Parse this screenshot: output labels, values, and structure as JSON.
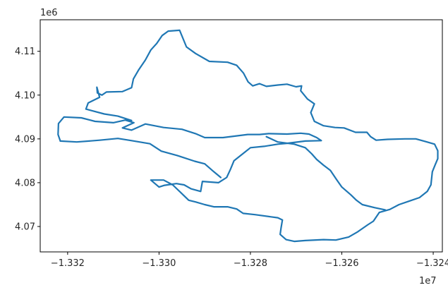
{
  "chart_data": {
    "type": "line",
    "title": "",
    "xlabel": "",
    "ylabel": "",
    "x_offset_label": "1e7",
    "y_offset_label": "1e6",
    "xlim": [
      -1.3326,
      -1.3238
    ],
    "ylim": [
      4.0642,
      4.1172
    ],
    "x_ticks": [
      -1.332,
      -1.33,
      -1.328,
      -1.326,
      -1.324
    ],
    "x_tick_labels": [
      "−1.332",
      "−1.330",
      "−1.328",
      "−1.326",
      "−1.324"
    ],
    "y_ticks": [
      4.07,
      4.08,
      4.09,
      4.1,
      4.11
    ],
    "y_tick_labels": [
      "4.07",
      "4.08",
      "4.09",
      "4.10",
      "4.11"
    ],
    "grid": false,
    "series_color": "#1f77b4",
    "series": [
      {
        "points": [
          [
            -1.33216,
            4.0895
          ],
          [
            -1.33221,
            4.091
          ],
          [
            -1.3322,
            4.0935
          ],
          [
            -1.33208,
            4.095
          ],
          [
            -1.3317,
            4.0948
          ],
          [
            -1.3314,
            4.094
          ],
          [
            -1.331,
            4.0937
          ],
          [
            -1.33074,
            4.0943
          ],
          [
            -1.33055,
            4.0937
          ],
          [
            -1.3308,
            4.0925
          ],
          [
            -1.3306,
            4.092
          ],
          [
            -1.3303,
            4.0934
          ],
          [
            -1.3299,
            4.0926
          ],
          [
            -1.3295,
            4.0922
          ],
          [
            -1.3292,
            4.0912
          ],
          [
            -1.329,
            4.0903
          ],
          [
            -1.3286,
            4.0903
          ],
          [
            -1.32806,
            4.091
          ],
          [
            -1.3278,
            4.091
          ],
          [
            -1.3276,
            4.0912
          ],
          [
            -1.3272,
            4.0911
          ],
          [
            -1.3269,
            4.0913
          ],
          [
            -1.32672,
            4.0911
          ],
          [
            -1.32655,
            4.0903
          ],
          [
            -1.32645,
            4.0896
          ],
          [
            -1.3268,
            4.0895
          ],
          [
            -1.3272,
            4.089
          ],
          [
            -1.3274,
            4.0888
          ],
          [
            -1.3277,
            4.0883
          ],
          [
            -1.328,
            4.088
          ],
          [
            -1.32812,
            4.087
          ],
          [
            -1.32836,
            4.085
          ],
          [
            -1.32844,
            4.083
          ],
          [
            -1.32852,
            4.0812
          ],
          [
            -1.3287,
            4.08
          ],
          [
            -1.32905,
            4.0803
          ],
          [
            -1.32909,
            4.078
          ],
          [
            -1.3293,
            4.0786
          ],
          [
            -1.32945,
            4.0795
          ],
          [
            -1.32962,
            4.0798
          ],
          [
            -1.32988,
            4.0794
          ],
          [
            -1.33,
            4.079
          ],
          [
            -1.33018,
            4.0806
          ],
          [
            -1.3299,
            4.0806
          ],
          [
            -1.3297,
            4.0795
          ],
          [
            -1.3295,
            4.0775
          ],
          [
            -1.32935,
            4.076
          ],
          [
            -1.3292,
            4.0756
          ],
          [
            -1.329,
            4.075
          ],
          [
            -1.3288,
            4.0745
          ],
          [
            -1.3285,
            4.0745
          ],
          [
            -1.3283,
            4.074
          ],
          [
            -1.32816,
            4.073
          ],
          [
            -1.3279,
            4.0727
          ],
          [
            -1.32755,
            4.0722
          ],
          [
            -1.3274,
            4.072
          ],
          [
            -1.3273,
            4.0715
          ],
          [
            -1.32733,
            4.0697
          ],
          [
            -1.32735,
            4.0682
          ],
          [
            -1.32722,
            4.067
          ],
          [
            -1.32704,
            4.0666
          ],
          [
            -1.3268,
            4.0668
          ],
          [
            -1.3264,
            4.067
          ],
          [
            -1.32613,
            4.0669
          ],
          [
            -1.32585,
            4.0676
          ],
          [
            -1.32565,
            4.0688
          ],
          [
            -1.32543,
            4.0704
          ],
          [
            -1.32531,
            4.0712
          ],
          [
            -1.32518,
            4.0732
          ],
          [
            -1.32495,
            4.0739
          ],
          [
            -1.32475,
            4.075
          ],
          [
            -1.3245,
            4.0759
          ],
          [
            -1.3243,
            4.0766
          ],
          [
            -1.32413,
            4.078
          ],
          [
            -1.32405,
            4.0795
          ],
          [
            -1.32402,
            4.0825
          ],
          [
            -1.32396,
            4.084
          ],
          [
            -1.3239,
            4.0855
          ],
          [
            -1.3239,
            4.0873
          ],
          [
            -1.32397,
            4.0888
          ],
          [
            -1.32417,
            4.0894
          ],
          [
            -1.32438,
            4.09
          ],
          [
            -1.32462,
            4.09
          ],
          [
            -1.325,
            4.0899
          ],
          [
            -1.32525,
            4.0897
          ],
          [
            -1.32537,
            4.0905
          ],
          [
            -1.32545,
            4.0915
          ],
          [
            -1.3257,
            4.0915
          ],
          [
            -1.32595,
            4.0925
          ],
          [
            -1.32615,
            4.0926
          ],
          [
            -1.3264,
            4.093
          ],
          [
            -1.3266,
            4.094
          ],
          [
            -1.32668,
            4.096
          ],
          [
            -1.3266,
            4.098
          ],
          [
            -1.32675,
            4.0991
          ],
          [
            -1.3269,
            4.101
          ],
          [
            -1.32688,
            4.1021
          ],
          [
            -1.327,
            4.1019
          ],
          [
            -1.3272,
            4.1025
          ],
          [
            -1.3274,
            4.1023
          ],
          [
            -1.32765,
            4.102
          ],
          [
            -1.3278,
            4.1026
          ],
          [
            -1.32795,
            4.1021
          ],
          [
            -1.32805,
            4.103
          ],
          [
            -1.32815,
            4.105
          ],
          [
            -1.3283,
            4.1068
          ],
          [
            -1.3285,
            4.1075
          ],
          [
            -1.3289,
            4.1077
          ],
          [
            -1.3292,
            4.1095
          ],
          [
            -1.3294,
            4.111
          ],
          [
            -1.32955,
            4.1148
          ],
          [
            -1.3298,
            4.1146
          ],
          [
            -1.32993,
            4.1136
          ],
          [
            -1.33005,
            4.1118
          ],
          [
            -1.33018,
            4.1103
          ],
          [
            -1.3303,
            4.108
          ],
          [
            -1.33045,
            4.1057
          ],
          [
            -1.33056,
            4.1037
          ],
          [
            -1.3306,
            4.1017
          ],
          [
            -1.3308,
            4.1008
          ],
          [
            -1.33115,
            4.1007
          ],
          [
            -1.33125,
            4.1
          ],
          [
            -1.33135,
            4.1005
          ],
          [
            -1.33136,
            4.1018
          ],
          [
            -1.3313,
            4.0995
          ],
          [
            -1.33155,
            4.0982
          ],
          [
            -1.3316,
            4.0968
          ],
          [
            -1.3312,
            4.0957
          ],
          [
            -1.3309,
            4.0952
          ],
          [
            -1.3306,
            4.0942
          ]
        ]
      },
      {
        "points": [
          [
            -1.33216,
            4.0895
          ],
          [
            -1.3318,
            4.0893
          ],
          [
            -1.3313,
            4.0897
          ],
          [
            -1.3309,
            4.0901
          ],
          [
            -1.3306,
            4.0896
          ],
          [
            -1.3302,
            4.0889
          ],
          [
            -1.32995,
            4.0872
          ],
          [
            -1.3296,
            4.0862
          ],
          [
            -1.32922,
            4.0849
          ],
          [
            -1.329,
            4.0843
          ],
          [
            -1.3288,
            4.0825
          ],
          [
            -1.32865,
            4.0812
          ]
        ]
      },
      {
        "points": [
          [
            -1.32765,
            4.0905
          ],
          [
            -1.3274,
            4.0893
          ],
          [
            -1.32704,
            4.0888
          ],
          [
            -1.3268,
            4.088
          ],
          [
            -1.32666,
            4.0866
          ],
          [
            -1.32655,
            4.0853
          ],
          [
            -1.3264,
            4.084
          ],
          [
            -1.32625,
            4.0828
          ],
          [
            -1.32612,
            4.0808
          ],
          [
            -1.326,
            4.079
          ],
          [
            -1.3258,
            4.0772
          ],
          [
            -1.32568,
            4.076
          ],
          [
            -1.32555,
            4.075
          ],
          [
            -1.32528,
            4.0743
          ],
          [
            -1.32505,
            4.0738
          ]
        ]
      }
    ]
  }
}
